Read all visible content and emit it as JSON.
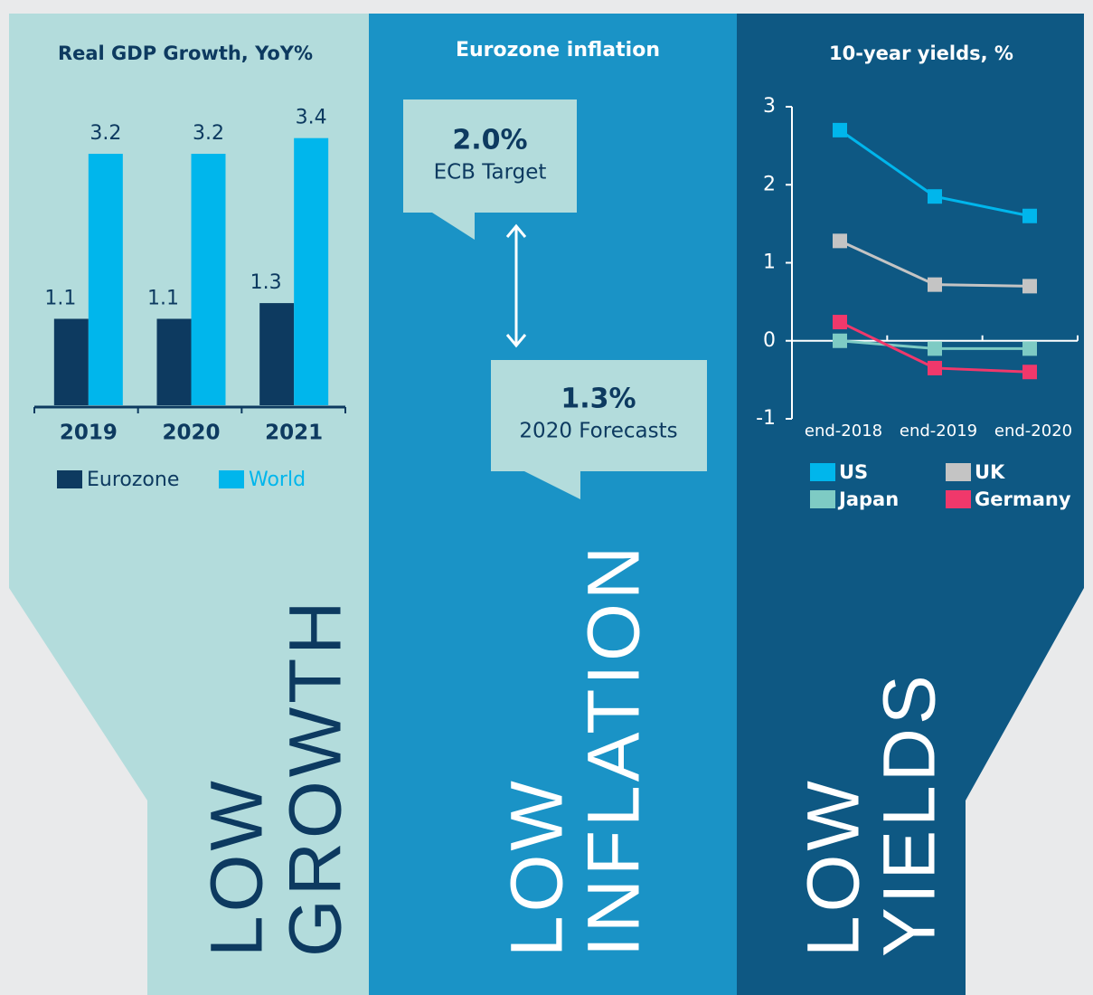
{
  "chart_data": [
    {
      "type": "bar",
      "title": "Real GDP Growth, YoY%",
      "categories": [
        "2019",
        "2020",
        "2021"
      ],
      "series": [
        {
          "name": "Eurozone",
          "color": "#0d3a60",
          "values": [
            1.1,
            1.1,
            1.3
          ]
        },
        {
          "name": "World",
          "color": "#00b6ec",
          "values": [
            3.2,
            3.2,
            3.4
          ]
        }
      ],
      "ylim": [
        0,
        3.5
      ]
    },
    {
      "type": "line",
      "title": "10-year yields, %",
      "categories": [
        "end-2018",
        "end-2019",
        "end-2020"
      ],
      "series": [
        {
          "name": "US",
          "color": "#00b6ec",
          "values": [
            2.7,
            1.85,
            1.6
          ]
        },
        {
          "name": "UK",
          "color": "#c4c4c4",
          "values": [
            1.28,
            0.72,
            0.7
          ]
        },
        {
          "name": "Japan",
          "color": "#7ecbc4",
          "values": [
            0,
            -0.1,
            -0.1
          ]
        },
        {
          "name": "Germany",
          "color": "#f0386b",
          "values": [
            0.24,
            -0.35,
            -0.4
          ]
        }
      ],
      "ylim": [
        -1,
        3
      ],
      "yticks": [
        -1,
        0,
        1,
        2,
        3
      ]
    }
  ],
  "inflation": {
    "title": "Eurozone inflation",
    "callouts": [
      {
        "value": "2.0%",
        "label": "ECB Target"
      },
      {
        "value": "1.3%",
        "label": "2020 Forecasts"
      }
    ]
  },
  "panels": [
    {
      "line1": "LOW",
      "line2": "GROWTH"
    },
    {
      "line1": "LOW",
      "line2": "INFLATION"
    },
    {
      "line1": "LOW",
      "line2": "YIELDS"
    }
  ]
}
